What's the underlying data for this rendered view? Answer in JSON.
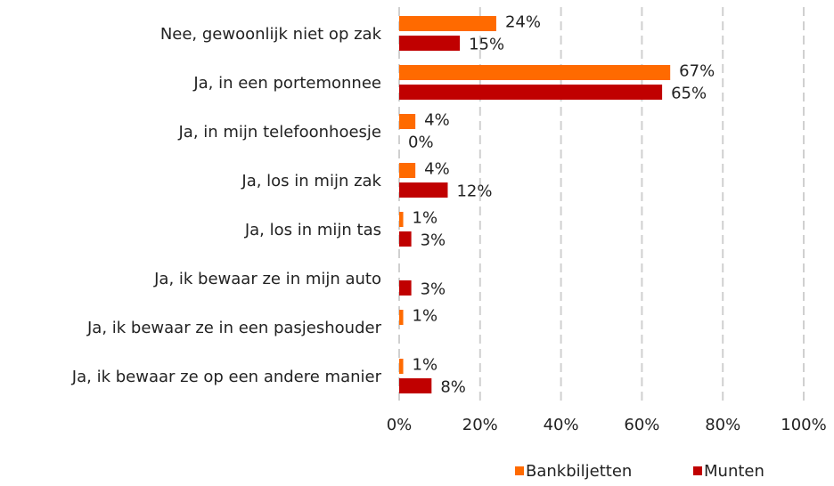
{
  "chart_data": {
    "type": "bar",
    "orientation": "horizontal",
    "categories": [
      "Nee, gewoonlijk niet op zak",
      "Ja, in een portemonnee",
      "Ja, in mijn telefoonhoesje",
      "Ja, los in mijn zak",
      "Ja, los in mijn tas",
      "Ja, ik bewaar ze in mijn auto",
      "Ja, ik bewaar ze in een pasjeshouder",
      "Ja, ik bewaar ze op een andere manier"
    ],
    "series": [
      {
        "name": "Bankbiljetten",
        "color": "#ff6a00",
        "values": [
          24,
          67,
          4,
          4,
          1,
          null,
          1,
          1
        ],
        "value_labels": [
          "24%",
          "67%",
          "4%",
          "4%",
          "1%",
          null,
          "1%",
          "1%"
        ]
      },
      {
        "name": "Munten",
        "color": "#c00000",
        "values": [
          15,
          65,
          0,
          12,
          3,
          3,
          null,
          8
        ],
        "value_labels": [
          "15%",
          "65%",
          "0%",
          "12%",
          "3%",
          "3%",
          null,
          "8%"
        ]
      }
    ],
    "xlim": [
      0,
      100
    ],
    "xticks": [
      {
        "value": 0,
        "label": "0%"
      },
      {
        "value": 20,
        "label": "20%"
      },
      {
        "value": 40,
        "label": "40%"
      },
      {
        "value": 60,
        "label": "60%"
      },
      {
        "value": 80,
        "label": "80%"
      },
      {
        "value": 100,
        "label": "100%"
      }
    ],
    "grid": true,
    "legend": "bottom"
  }
}
